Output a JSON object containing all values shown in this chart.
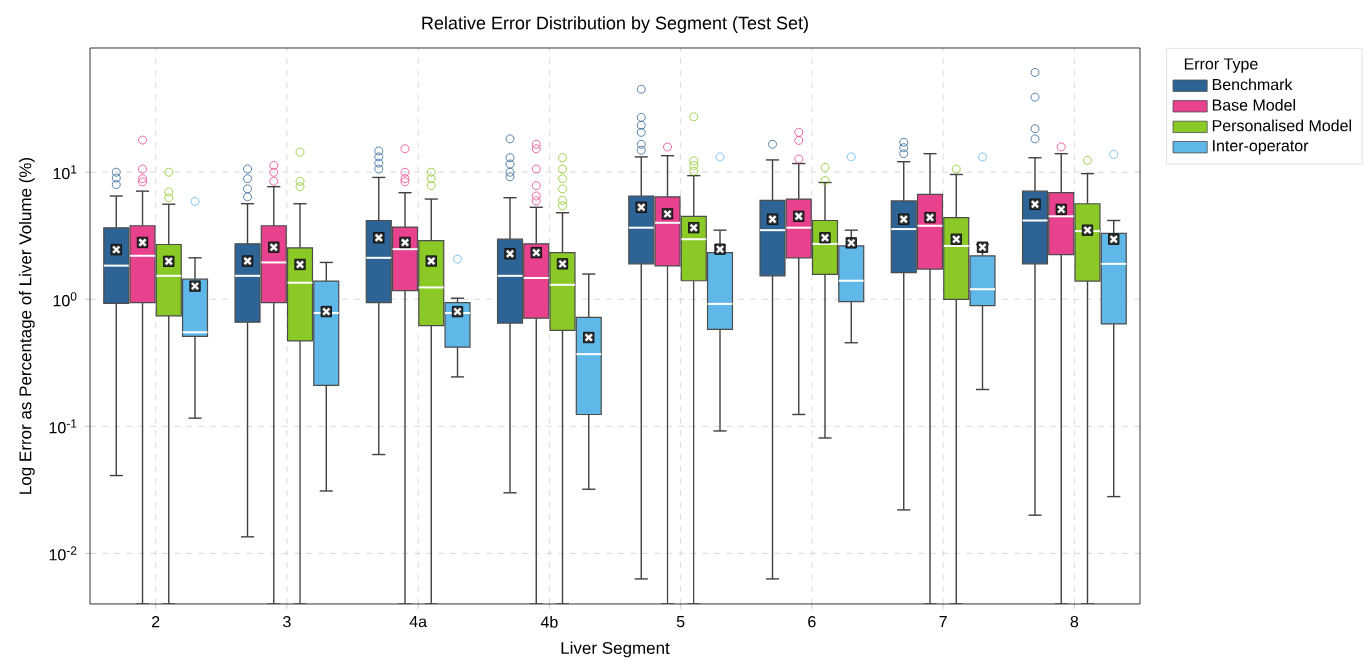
{
  "chart_data": {
    "type": "box",
    "title": "Relative Error Distribution by Segment (Test Set)",
    "xlabel": "Liver Segment",
    "ylabel": "Log Error as Percentage of Liver Volume (%)",
    "legend_title": "Error Type",
    "legend": "right",
    "grid": true,
    "log": "y",
    "categories": [
      "2",
      "3",
      "4a",
      "4b",
      "5",
      "6",
      "7",
      "8"
    ],
    "ylim": [
      0.004,
      95
    ],
    "yticks": [
      {
        "value": 0.01,
        "label": "10$^{-2}$"
      },
      {
        "value": 0.1,
        "label": "10$^{-1}$"
      },
      {
        "value": 1,
        "label": "10$^{0}$"
      },
      {
        "value": 10,
        "label": "10$^{1}$"
      }
    ],
    "series": [
      {
        "name": "Benchmark",
        "color": "#2e6396",
        "boxes": [
          {
            "low": 0.041,
            "q1": 0.93,
            "median": 1.84,
            "q3": 3.65,
            "high": 6.5,
            "mean": 2.46,
            "outliers": [
              8,
              9,
              10
            ]
          },
          {
            "low": 0.0135,
            "q1": 0.66,
            "median": 1.53,
            "q3": 2.73,
            "high": 5.65,
            "mean": 2.0,
            "outliers": [
              6.4,
              7.4,
              8.9,
              10.6
            ]
          },
          {
            "low": 0.06,
            "q1": 0.94,
            "median": 2.12,
            "q3": 4.17,
            "high": 9.1,
            "mean": 3.05,
            "outliers": [
              10.6,
              11.8,
              13.2,
              14.7
            ]
          },
          {
            "low": 0.03,
            "q1": 0.65,
            "median": 1.53,
            "q3": 2.97,
            "high": 6.3,
            "mean": 2.28,
            "outliers": [
              9.2,
              10,
              11.6,
              13,
              18.3
            ]
          },
          {
            "low": 0.0063,
            "q1": 1.9,
            "median": 3.66,
            "q3": 6.5,
            "high": 13.2,
            "mean": 5.3,
            "outliers": [
              14.9,
              16.6,
              20.6,
              23.4,
              27,
              45
            ]
          },
          {
            "low": 0.0063,
            "q1": 1.53,
            "median": 3.5,
            "q3": 6.0,
            "high": 12.5,
            "mean": 4.27,
            "outliers": [
              16.6
            ]
          },
          {
            "low": 0.022,
            "q1": 1.62,
            "median": 3.57,
            "q3": 5.95,
            "high": 12.1,
            "mean": 4.27,
            "outliers": [
              14,
              15.6,
              17.2
            ]
          },
          {
            "low": 0.02,
            "q1": 1.9,
            "median": 4.17,
            "q3": 7.1,
            "high": 13,
            "mean": 5.6,
            "outliers": [
              18.3,
              22,
              39,
              61
            ]
          }
        ]
      },
      {
        "name": "Base Model",
        "color": "#e8428f",
        "boxes": [
          {
            "low": 0.004,
            "q1": 0.94,
            "median": 2.2,
            "q3": 3.79,
            "high": 7.1,
            "mean": 2.8,
            "outliers": [
              8.4,
              8.9,
              10.6,
              17.9
            ]
          },
          {
            "low": 0.004,
            "q1": 0.94,
            "median": 1.95,
            "q3": 3.79,
            "high": 7.7,
            "mean": 2.57,
            "outliers": [
              8.5,
              10,
              11.3
            ]
          },
          {
            "low": 0.004,
            "q1": 1.17,
            "median": 2.48,
            "q3": 3.7,
            "high": 6.9,
            "mean": 2.8,
            "outliers": [
              8.4,
              8.9,
              10,
              15.3
            ]
          },
          {
            "low": 0.004,
            "q1": 0.71,
            "median": 1.47,
            "q3": 2.73,
            "high": 5.3,
            "mean": 2.33,
            "outliers": [
              5.95,
              6.5,
              7.85,
              10.6,
              15.3,
              16.6
            ]
          },
          {
            "low": 0.004,
            "q1": 1.83,
            "median": 4.0,
            "q3": 6.4,
            "high": 13.5,
            "mean": 4.7,
            "outliers": [
              15.8
            ]
          },
          {
            "low": 0.124,
            "q1": 2.12,
            "median": 3.66,
            "q3": 6.15,
            "high": 11.7,
            "mean": 4.5,
            "outliers": [
              12.7,
              17.8,
              20.6
            ]
          },
          {
            "low": 0.004,
            "q1": 1.73,
            "median": 3.79,
            "q3": 6.7,
            "high": 14,
            "mean": 4.4
          },
          {
            "low": 0.004,
            "q1": 2.25,
            "median": 4.5,
            "q3": 6.9,
            "high": 14,
            "mean": 5.1,
            "outliers": [
              15.8
            ]
          }
        ]
      },
      {
        "name": "Personalised Model",
        "color": "#8ac926",
        "boxes": [
          {
            "low": 0.004,
            "q1": 0.74,
            "median": 1.53,
            "q3": 2.7,
            "high": 5.6,
            "mean": 1.99,
            "outliers": [
              6.3,
              7,
              10
            ]
          },
          {
            "low": 0.004,
            "q1": 0.47,
            "median": 1.35,
            "q3": 2.54,
            "high": 5.65,
            "mean": 1.88,
            "outliers": [
              7.7,
              8.5,
              14.4
            ]
          },
          {
            "low": 0.004,
            "q1": 0.62,
            "median": 1.24,
            "q3": 2.9,
            "high": 6.15,
            "mean": 2.0,
            "outliers": [
              7.85,
              8.9,
              10
            ]
          },
          {
            "low": 0.004,
            "q1": 0.57,
            "median": 1.3,
            "q3": 2.33,
            "high": 4.8,
            "mean": 1.9,
            "outliers": [
              5.45,
              6.0,
              7.4,
              8.9,
              10.6,
              13
            ]
          },
          {
            "low": 0.004,
            "q1": 1.4,
            "median": 2.97,
            "q3": 4.5,
            "high": 9.4,
            "mean": 3.66,
            "outliers": [
              10.2,
              11.3,
              12.3,
              27.3
            ]
          },
          {
            "low": 0.081,
            "q1": 1.57,
            "median": 2.73,
            "q3": 4.17,
            "high": 8.3,
            "mean": 3.05,
            "outliers": [
              8.6,
              10.9
            ]
          },
          {
            "low": 0.004,
            "q1": 1.0,
            "median": 2.63,
            "q3": 4.4,
            "high": 9.6,
            "mean": 2.97,
            "outliers": [
              10.6
            ]
          },
          {
            "low": 0.004,
            "q1": 1.39,
            "median": 3.44,
            "q3": 5.65,
            "high": 9.75,
            "mean": 3.5,
            "outliers": [
              12.4
            ]
          }
        ]
      },
      {
        "name": "Inter-operator",
        "color": "#5fb8e8",
        "boxes": [
          {
            "low": 0.116,
            "q1": 0.51,
            "median": 0.55,
            "q3": 1.44,
            "high": 2.12,
            "mean": 1.27,
            "outliers": [
              5.9
            ]
          },
          {
            "low": 0.031,
            "q1": 0.21,
            "median": 0.78,
            "q3": 1.39,
            "high": 1.95,
            "mean": 0.8
          },
          {
            "low": 0.245,
            "q1": 0.42,
            "median": 0.78,
            "q3": 0.94,
            "high": 1.02,
            "mean": 0.8,
            "outliers": [
              2.07
            ]
          },
          {
            "low": 0.032,
            "q1": 0.124,
            "median": 0.37,
            "q3": 0.72,
            "high": 1.58,
            "mean": 0.5
          },
          {
            "low": 0.092,
            "q1": 0.58,
            "median": 0.92,
            "q3": 2.33,
            "high": 3.5,
            "mean": 2.48,
            "outliers": [
              13.2
            ]
          },
          {
            "low": 0.455,
            "q1": 0.96,
            "median": 1.4,
            "q3": 2.63,
            "high": 3.5,
            "mean": 2.78,
            "outliers": [
              13.2
            ]
          },
          {
            "low": 0.195,
            "q1": 0.89,
            "median": 1.2,
            "q3": 2.2,
            "high": 2.7,
            "mean": 2.57,
            "outliers": [
              13.2
            ]
          },
          {
            "low": 0.028,
            "q1": 0.64,
            "median": 1.9,
            "q3": 3.3,
            "high": 4.17,
            "mean": 2.97,
            "outliers": [
              13.8
            ]
          }
        ]
      }
    ]
  }
}
